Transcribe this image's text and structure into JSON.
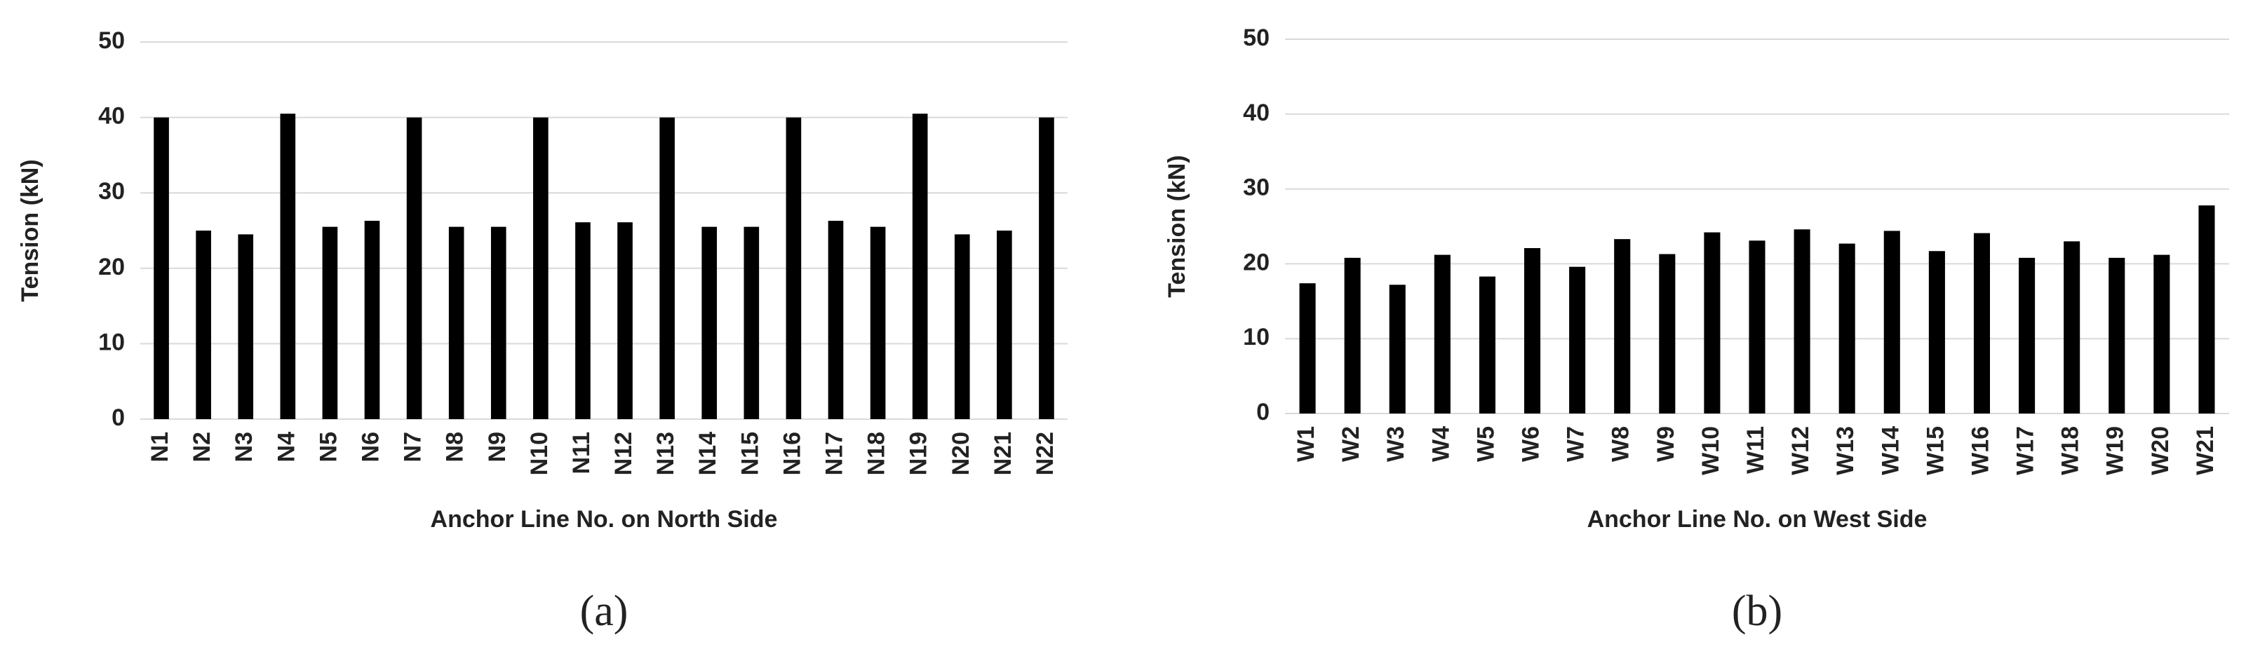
{
  "chart_data": [
    {
      "type": "bar",
      "caption": "(a)",
      "x_label": "Anchor Line No. on North Side",
      "y_label": "Tension (kN)",
      "categories": [
        "N1",
        "N2",
        "N3",
        "N4",
        "N5",
        "N6",
        "N7",
        "N8",
        "N9",
        "N10",
        "N11",
        "N12",
        "N13",
        "N14",
        "N15",
        "N16",
        "N17",
        "N18",
        "N19",
        "N20",
        "N21",
        "N22"
      ],
      "values": [
        40,
        25,
        24.5,
        40.5,
        25.5,
        26.3,
        40,
        25.5,
        25.5,
        40,
        26.1,
        26.1,
        40,
        25.5,
        25.5,
        40,
        26.3,
        25.5,
        40.5,
        24.5,
        25,
        40
      ],
      "color": "#000000",
      "ylim": [
        0,
        50
      ],
      "yticks": [
        0,
        10,
        20,
        30,
        40,
        50
      ],
      "grid": true
    },
    {
      "type": "bar",
      "caption": "(b)",
      "x_label": "Anchor Line No. on West Side",
      "y_label": "Tension (kN)",
      "categories": [
        "W1",
        "W2",
        "W3",
        "W4",
        "W5",
        "W6",
        "W7",
        "W8",
        "W9",
        "W10",
        "W11",
        "W12",
        "W13",
        "W14",
        "W15",
        "W16",
        "W17",
        "W18",
        "W19",
        "W20",
        "W21"
      ],
      "values": [
        17.4,
        20.8,
        17.2,
        21.2,
        18.3,
        22.1,
        19.6,
        23.3,
        21.3,
        24.2,
        23.1,
        24.6,
        22.7,
        24.4,
        21.7,
        24.1,
        20.8,
        23.0,
        20.8,
        21.2,
        27.8
      ],
      "color": "#000000",
      "ylim": [
        0,
        50
      ],
      "yticks": [
        0,
        10,
        20,
        30,
        40,
        50
      ],
      "grid": true
    }
  ]
}
